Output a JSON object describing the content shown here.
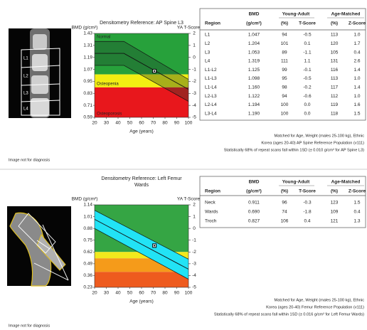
{
  "chart_data": [
    {
      "type": "reference",
      "title": "Densitometry Reference: AP Spine L3",
      "y_label": "BMD (g/cm²)",
      "y2_label": "YA T-Score",
      "x_label": "Age (years)",
      "xlim": [
        20,
        100
      ],
      "xticks": [
        20,
        30,
        40,
        50,
        60,
        70,
        80,
        90,
        100
      ],
      "ylim": [
        0.59,
        1.43
      ],
      "yticks": [
        1.43,
        1.31,
        1.19,
        1.07,
        0.95,
        0.83,
        0.71,
        0.59
      ],
      "y2lim": [
        -5,
        2
      ],
      "y2ticks": [
        2,
        1,
        0,
        -1,
        -2,
        -3,
        -4,
        -5
      ],
      "bands": [
        {
          "from": 1.02,
          "to": 1.43,
          "color": "#27a13b",
          "label": "Normal"
        },
        {
          "from": 0.89,
          "to": 1.02,
          "color": "#f2ee12",
          "label": "Osteopenia"
        },
        {
          "from": 0.59,
          "to": 0.89,
          "color": "#e8171c",
          "label": "Osteoporosis"
        }
      ],
      "reference": {
        "x": [
          20,
          45,
          100
        ],
        "upper": [
          1.35,
          1.35,
          0.97
        ],
        "mean": [
          1.23,
          1.23,
          0.87
        ],
        "lower": [
          1.11,
          1.11,
          0.75
        ]
      },
      "reference_color": "#1d3d2a",
      "reference_opacity": 0.35,
      "line_color": "#111",
      "point": {
        "x": 71,
        "y": 1.053
      }
    },
    {
      "type": "reference",
      "title": "Densitometry Reference: Left Femur Wards",
      "y_label": "BMD (g/cm²)",
      "y2_label": "YA T-Score",
      "x_label": "Age (years)",
      "xlim": [
        20,
        100
      ],
      "xticks": [
        20,
        30,
        40,
        50,
        60,
        70,
        80,
        90,
        100
      ],
      "ylim": [
        0.23,
        1.14
      ],
      "yticks": [
        1.14,
        1.01,
        0.88,
        0.75,
        0.62,
        0.49,
        0.36,
        0.23
      ],
      "y2lim": [
        -5,
        2
      ],
      "y2ticks": [
        2,
        1,
        0,
        -1,
        -2,
        -3,
        -4,
        -5
      ],
      "bands": [
        {
          "from": 0.62,
          "to": 1.14,
          "color": "#35a544"
        },
        {
          "from": 0.55,
          "to": 0.62,
          "color": "#f1e91d"
        },
        {
          "from": 0.4,
          "to": 0.55,
          "color": "#f59b1a"
        },
        {
          "from": 0.23,
          "to": 0.4,
          "color": "#ee5b1e"
        }
      ],
      "reference": {
        "x": [
          20,
          100
        ],
        "upper": [
          1.08,
          0.54
        ],
        "mean": [
          0.98,
          0.43
        ],
        "lower": [
          0.88,
          0.32
        ]
      },
      "reference_color": "#22e3f5",
      "reference_opacity": 1,
      "line_color": "#111",
      "point": {
        "x": 71,
        "y": 0.69
      }
    }
  ],
  "spine_image_labels": [
    "L1",
    "L2",
    "L3",
    "L4"
  ],
  "tables": [
    {
      "groups": [
        "BMD",
        "Young-Adult",
        "Age-Matched"
      ],
      "columns": [
        "Region",
        "(g/cm²)",
        "(%)",
        "T-Score",
        "(%)",
        "Z-Score"
      ],
      "rows": [
        [
          "L1",
          "1.047",
          "94",
          "-0.5",
          "113",
          "1.0"
        ],
        [
          "L2",
          "1.204",
          "101",
          "0.1",
          "120",
          "1.7"
        ],
        [
          "L3",
          "1.053",
          "89",
          "-1.1",
          "105",
          "0.4"
        ],
        [
          "L4",
          "1.319",
          "111",
          "1.1",
          "131",
          "2.6"
        ],
        [
          "L1-L2",
          "1.125",
          "99",
          "-0.1",
          "116",
          "1.4"
        ],
        [
          "L1-L3",
          "1.098",
          "95",
          "-0.5",
          "113",
          "1.0"
        ],
        [
          "L1-L4",
          "1.160",
          "98",
          "-0.2",
          "117",
          "1.4"
        ],
        [
          "L2-L3",
          "1.122",
          "94",
          "-0.6",
          "112",
          "1.0"
        ],
        [
          "L2-L4",
          "1.194",
          "100",
          "0.0",
          "119",
          "1.6"
        ],
        [
          "L3-L4",
          "1.190",
          "100",
          "0.0",
          "118",
          "1.5"
        ]
      ]
    },
    {
      "groups": [
        "BMD",
        "Young-Adult",
        "Age-Matched"
      ],
      "columns": [
        "Region",
        "(g/cm²)",
        "(%)",
        "T-Score",
        "(%)",
        "Z-Score"
      ],
      "rows": [
        [
          "Neck",
          "0.911",
          "96",
          "-0.3",
          "123",
          "1.5"
        ],
        [
          "Wards",
          "0.690",
          "74",
          "-1.8",
          "109",
          "0.4"
        ],
        [
          "Troch",
          "0.827",
          "106",
          "0.4",
          "121",
          "1.3"
        ]
      ]
    }
  ],
  "notes": [
    [
      "Matched for Age, Weight (males 25-100 kg), Ethnic",
      "Korea (ages 20-40) AP Spine Reference Population (v111)",
      "Statistically 68% of repeat scans fall within 1SD (± 0.010 g/cm² for AP Spine L3)"
    ],
    [
      "Matched for Age, Weight (males 25-100 kg), Ethnic",
      "Korea (ages 20-40) Femur Reference Population (v111)",
      "Statistically 68% of repeat scans fall within 1SD (± 0.016 g/cm² for Left Femur Wards)"
    ]
  ],
  "image_notes": [
    "Image not for diagnosis",
    "Image not for diagnosis"
  ]
}
